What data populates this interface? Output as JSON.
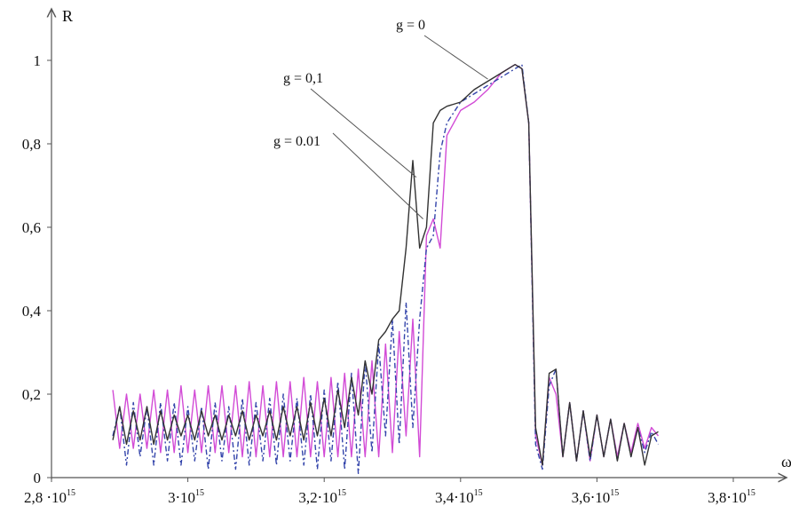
{
  "chart_data": {
    "type": "line",
    "xlabel": "ω",
    "ylabel": "R",
    "xlim": [
      2800000000000000.0,
      3850000000000000.0
    ],
    "ylim": [
      0,
      1.1
    ],
    "grid": false,
    "x_ticks": [
      {
        "value": 2800000000000000.0,
        "label": "2,8 ⋅10",
        "exp": "15"
      },
      {
        "value": 3000000000000000.0,
        "label": "3⋅10",
        "exp": "15"
      },
      {
        "value": 3200000000000000.0,
        "label": "3,2⋅10",
        "exp": "15"
      },
      {
        "value": 3400000000000000.0,
        "label": "3,4⋅10",
        "exp": "15"
      },
      {
        "value": 3600000000000000.0,
        "label": "3,6⋅10",
        "exp": "15"
      },
      {
        "value": 3800000000000000.0,
        "label": "3,8⋅10",
        "exp": "15"
      }
    ],
    "y_ticks": [
      {
        "value": 0,
        "label": "0"
      },
      {
        "value": 0.2,
        "label": "0,2"
      },
      {
        "value": 0.4,
        "label": "0,4"
      },
      {
        "value": 0.6,
        "label": "0,6"
      },
      {
        "value": 0.8,
        "label": "0,8"
      },
      {
        "value": 1,
        "label": "1"
      }
    ],
    "annotations": [
      {
        "text": "g = 0",
        "series": 0
      },
      {
        "text": "g = 0,1",
        "series": 2
      },
      {
        "text": "g = 0.01",
        "series": 1
      }
    ],
    "series": [
      {
        "name": "g = 0",
        "color": "#d24bd6",
        "dash": "",
        "x": [
          2890000000000000.0,
          2900000000000000.0,
          2910000000000000.0,
          2920000000000000.0,
          2930000000000000.0,
          2940000000000000.0,
          2950000000000000.0,
          2960000000000000.0,
          2970000000000000.0,
          2980000000000000.0,
          2990000000000000.0,
          3000000000000000.0,
          3010000000000000.0,
          3020000000000000.0,
          3030000000000000.0,
          3040000000000000.0,
          3050000000000000.0,
          3060000000000000.0,
          3070000000000000.0,
          3080000000000000.0,
          3090000000000000.0,
          3100000000000000.0,
          3110000000000000.0,
          3120000000000000.0,
          3130000000000000.0,
          3140000000000000.0,
          3150000000000000.0,
          3160000000000000.0,
          3170000000000000.0,
          3180000000000000.0,
          3190000000000000.0,
          3200000000000000.0,
          3210000000000000.0,
          3220000000000000.0,
          3230000000000000.0,
          3240000000000000.0,
          3250000000000000.0,
          3260000000000000.0,
          3270000000000000.0,
          3280000000000000.0,
          3290000000000000.0,
          3300000000000000.0,
          3310000000000000.0,
          3320000000000000.0,
          3330000000000000.0,
          3340000000000000.0,
          3350000000000000.0,
          3360000000000000.0,
          3370000000000000.0,
          3380000000000000.0,
          3400000000000000.0,
          3420000000000000.0,
          3440000000000000.0,
          3460000000000000.0,
          3480000000000000.0,
          3490000000000000.0,
          3500000000000000.0,
          3510000000000000.0,
          3520000000000000.0,
          3530000000000000.0,
          3540000000000000.0,
          3550000000000000.0,
          3560000000000000.0,
          3570000000000000.0,
          3580000000000000.0,
          3590000000000000.0,
          3600000000000000.0,
          3610000000000000.0,
          3620000000000000.0,
          3630000000000000.0,
          3640000000000000.0,
          3650000000000000.0,
          3660000000000000.0,
          3670000000000000.0,
          3680000000000000.0,
          3690000000000000.0
        ],
        "y": [
          0.21,
          0.07,
          0.2,
          0.07,
          0.2,
          0.07,
          0.21,
          0.06,
          0.21,
          0.06,
          0.22,
          0.06,
          0.21,
          0.06,
          0.22,
          0.06,
          0.22,
          0.06,
          0.22,
          0.05,
          0.23,
          0.05,
          0.22,
          0.05,
          0.23,
          0.05,
          0.23,
          0.05,
          0.24,
          0.05,
          0.23,
          0.05,
          0.24,
          0.05,
          0.25,
          0.05,
          0.26,
          0.05,
          0.28,
          0.05,
          0.32,
          0.06,
          0.35,
          0.1,
          0.38,
          0.05,
          0.58,
          0.62,
          0.55,
          0.82,
          0.88,
          0.9,
          0.93,
          0.97,
          0.99,
          0.98,
          0.85,
          0.1,
          0.03,
          0.24,
          0.2,
          0.05,
          0.18,
          0.04,
          0.16,
          0.04,
          0.15,
          0.05,
          0.14,
          0.05,
          0.13,
          0.06,
          0.13,
          0.07,
          0.12,
          0.1
        ]
      },
      {
        "name": "g = 0.01",
        "color": "#3344aa",
        "dash": "6,3,2,3",
        "x": [
          2890000000000000.0,
          2900000000000000.0,
          2910000000000000.0,
          2920000000000000.0,
          2930000000000000.0,
          2940000000000000.0,
          2950000000000000.0,
          2960000000000000.0,
          2970000000000000.0,
          2980000000000000.0,
          2990000000000000.0,
          3000000000000000.0,
          3010000000000000.0,
          3020000000000000.0,
          3030000000000000.0,
          3040000000000000.0,
          3050000000000000.0,
          3060000000000000.0,
          3070000000000000.0,
          3080000000000000.0,
          3090000000000000.0,
          3100000000000000.0,
          3110000000000000.0,
          3120000000000000.0,
          3130000000000000.0,
          3140000000000000.0,
          3150000000000000.0,
          3160000000000000.0,
          3170000000000000.0,
          3180000000000000.0,
          3190000000000000.0,
          3200000000000000.0,
          3210000000000000.0,
          3220000000000000.0,
          3230000000000000.0,
          3240000000000000.0,
          3250000000000000.0,
          3260000000000000.0,
          3270000000000000.0,
          3280000000000000.0,
          3290000000000000.0,
          3300000000000000.0,
          3310000000000000.0,
          3320000000000000.0,
          3330000000000000.0,
          3340000000000000.0,
          3350000000000000.0,
          3360000000000000.0,
          3370000000000000.0,
          3380000000000000.0,
          3400000000000000.0,
          3420000000000000.0,
          3440000000000000.0,
          3460000000000000.0,
          3480000000000000.0,
          3490000000000000.0,
          3500000000000000.0,
          3510000000000000.0,
          3520000000000000.0,
          3530000000000000.0,
          3540000000000000.0,
          3550000000000000.0,
          3560000000000000.0,
          3570000000000000.0,
          3580000000000000.0,
          3590000000000000.0,
          3600000000000000.0,
          3610000000000000.0,
          3620000000000000.0,
          3630000000000000.0,
          3640000000000000.0,
          3650000000000000.0,
          3660000000000000.0,
          3670000000000000.0,
          3680000000000000.0,
          3690000000000000.0
        ],
        "y": [
          0.1,
          0.17,
          0.03,
          0.18,
          0.05,
          0.17,
          0.03,
          0.18,
          0.04,
          0.18,
          0.03,
          0.17,
          0.04,
          0.17,
          0.02,
          0.18,
          0.04,
          0.17,
          0.02,
          0.19,
          0.03,
          0.18,
          0.04,
          0.19,
          0.03,
          0.2,
          0.04,
          0.19,
          0.03,
          0.2,
          0.02,
          0.21,
          0.04,
          0.23,
          0.02,
          0.25,
          0.01,
          0.28,
          0.06,
          0.32,
          0.1,
          0.38,
          0.08,
          0.42,
          0.12,
          0.38,
          0.55,
          0.58,
          0.78,
          0.85,
          0.9,
          0.92,
          0.94,
          0.96,
          0.98,
          0.99,
          0.85,
          0.08,
          0.02,
          0.22,
          0.26,
          0.05,
          0.18,
          0.04,
          0.16,
          0.04,
          0.15,
          0.05,
          0.14,
          0.04,
          0.13,
          0.05,
          0.12,
          0.06,
          0.11,
          0.08
        ]
      },
      {
        "name": "g = 0,1",
        "color": "#333333",
        "dash": "",
        "x": [
          2890000000000000.0,
          2900000000000000.0,
          2910000000000000.0,
          2920000000000000.0,
          2930000000000000.0,
          2940000000000000.0,
          2950000000000000.0,
          2960000000000000.0,
          2970000000000000.0,
          2980000000000000.0,
          2990000000000000.0,
          3000000000000000.0,
          3010000000000000.0,
          3020000000000000.0,
          3030000000000000.0,
          3040000000000000.0,
          3050000000000000.0,
          3060000000000000.0,
          3070000000000000.0,
          3080000000000000.0,
          3090000000000000.0,
          3100000000000000.0,
          3110000000000000.0,
          3120000000000000.0,
          3130000000000000.0,
          3140000000000000.0,
          3150000000000000.0,
          3160000000000000.0,
          3170000000000000.0,
          3180000000000000.0,
          3190000000000000.0,
          3200000000000000.0,
          3210000000000000.0,
          3220000000000000.0,
          3230000000000000.0,
          3240000000000000.0,
          3250000000000000.0,
          3260000000000000.0,
          3270000000000000.0,
          3280000000000000.0,
          3290000000000000.0,
          3300000000000000.0,
          3310000000000000.0,
          3320000000000000.0,
          3330000000000000.0,
          3340000000000000.0,
          3350000000000000.0,
          3360000000000000.0,
          3370000000000000.0,
          3380000000000000.0,
          3400000000000000.0,
          3420000000000000.0,
          3440000000000000.0,
          3460000000000000.0,
          3480000000000000.0,
          3490000000000000.0,
          3500000000000000.0,
          3510000000000000.0,
          3520000000000000.0,
          3530000000000000.0,
          3540000000000000.0,
          3550000000000000.0,
          3560000000000000.0,
          3570000000000000.0,
          3580000000000000.0,
          3590000000000000.0,
          3600000000000000.0,
          3610000000000000.0,
          3620000000000000.0,
          3630000000000000.0,
          3640000000000000.0,
          3650000000000000.0,
          3660000000000000.0,
          3670000000000000.0,
          3680000000000000.0,
          3690000000000000.0
        ],
        "y": [
          0.09,
          0.17,
          0.08,
          0.16,
          0.09,
          0.17,
          0.08,
          0.16,
          0.09,
          0.15,
          0.1,
          0.15,
          0.09,
          0.16,
          0.1,
          0.15,
          0.09,
          0.15,
          0.1,
          0.16,
          0.09,
          0.15,
          0.1,
          0.16,
          0.09,
          0.17,
          0.1,
          0.17,
          0.09,
          0.18,
          0.1,
          0.19,
          0.1,
          0.21,
          0.12,
          0.24,
          0.15,
          0.28,
          0.2,
          0.33,
          0.35,
          0.38,
          0.4,
          0.55,
          0.76,
          0.55,
          0.6,
          0.85,
          0.88,
          0.89,
          0.9,
          0.93,
          0.95,
          0.97,
          0.99,
          0.98,
          0.85,
          0.12,
          0.03,
          0.25,
          0.26,
          0.05,
          0.18,
          0.04,
          0.16,
          0.05,
          0.15,
          0.05,
          0.14,
          0.04,
          0.13,
          0.05,
          0.12,
          0.03,
          0.1,
          0.11
        ]
      }
    ]
  }
}
